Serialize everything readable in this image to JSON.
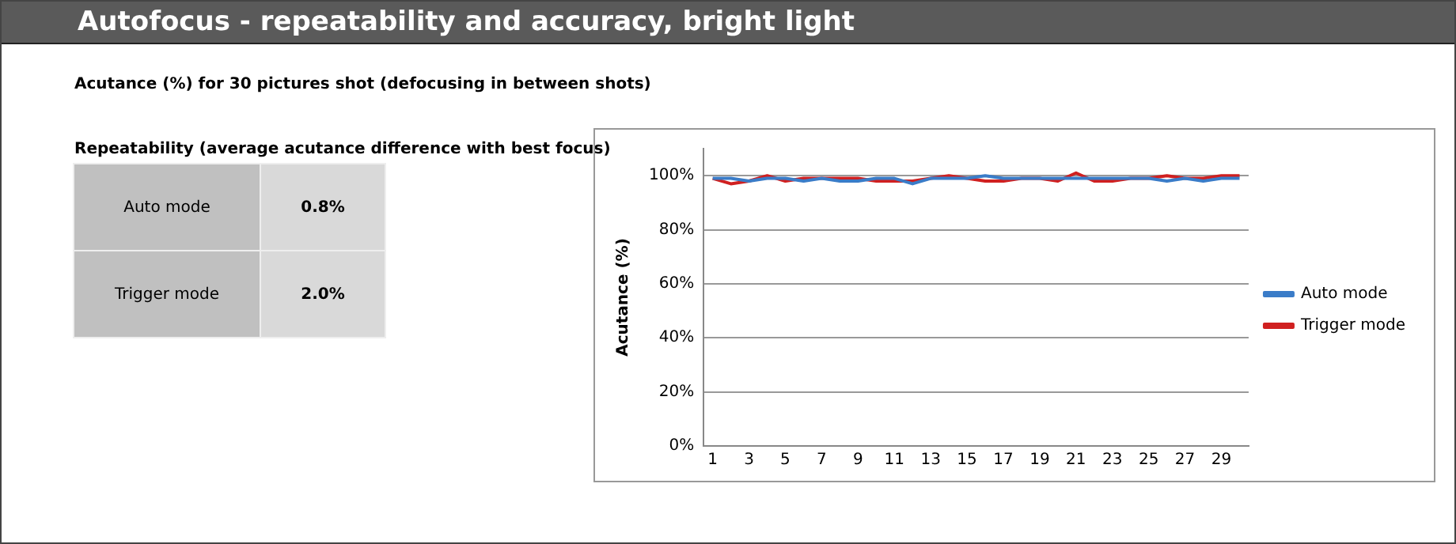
{
  "chart_data": [
    {
      "type": "other",
      "title": "Autofocus - repeatability and accuracy, bright light",
      "subtitle": "Acutance (%) for 30 pictures shot (defocusing in between shots)",
      "annotations": [
        "Repeatability (average acutance difference with best focus)"
      ],
      "categories": [
        "Auto mode",
        "Trigger mode"
      ],
      "values": [
        0.8,
        2.0
      ],
      "value_labels": [
        "0.8%",
        "2.0%"
      ]
    },
    {
      "type": "line",
      "ylabel": "Acutance (%)",
      "x": [
        1,
        2,
        3,
        4,
        5,
        6,
        7,
        8,
        9,
        10,
        11,
        12,
        13,
        14,
        15,
        16,
        17,
        18,
        19,
        20,
        21,
        22,
        23,
        24,
        25,
        26,
        27,
        28,
        29,
        30
      ],
      "xlim": [
        0.5,
        30.5
      ],
      "xticks": [
        1,
        3,
        5,
        7,
        9,
        11,
        13,
        15,
        17,
        19,
        21,
        23,
        25,
        27,
        29
      ],
      "series": [
        {
          "name": "Auto mode",
          "color": "#3a7cc8",
          "values": [
            99,
            99,
            98,
            99,
            99,
            98,
            99,
            98,
            98,
            99,
            99,
            97,
            99,
            99,
            99,
            100,
            99,
            99,
            99,
            99,
            99,
            99,
            99,
            99,
            99,
            98,
            99,
            98,
            99,
            99
          ]
        },
        {
          "name": "Trigger mode",
          "color": "#d02020",
          "values": [
            99,
            97,
            98,
            100,
            98,
            99,
            99,
            99,
            99,
            98,
            98,
            98,
            99,
            100,
            99,
            98,
            98,
            99,
            99,
            98,
            101,
            98,
            98,
            99,
            99,
            100,
            99,
            99,
            100,
            100
          ]
        }
      ],
      "ylim": [
        0,
        110
      ],
      "yticks": [
        {
          "value": 0,
          "label": "0%"
        },
        {
          "value": 20,
          "label": "20%"
        },
        {
          "value": 40,
          "label": "40%"
        },
        {
          "value": 60,
          "label": "60%"
        },
        {
          "value": 80,
          "label": "80%"
        },
        {
          "value": 100,
          "label": "100%"
        }
      ],
      "grid": "y",
      "legend": "right",
      "marker": "none",
      "line_style": "solid"
    }
  ]
}
